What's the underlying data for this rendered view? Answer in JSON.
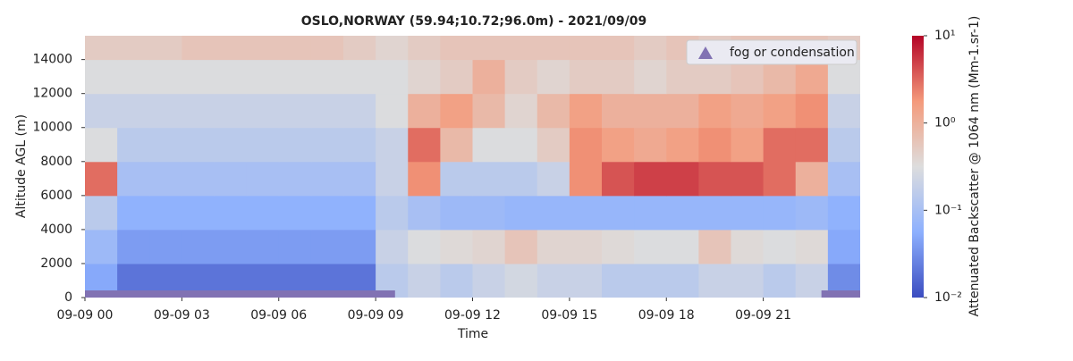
{
  "chart_data": {
    "type": "heatmap",
    "title": "OSLO,NORWAY (59.94;10.72;96.0m) - 2021/09/09",
    "x_label": "Time",
    "y_label": "Altitude AGL (m)",
    "colorbar_label": "Attenuated Backscatter @ 1064 nm (Mm-1.sr-1)",
    "colormap": "coolwarm",
    "color_scale": "log",
    "clim": [
      0.01,
      10
    ],
    "cticks": [
      {
        "value": 0.01,
        "label": "10⁻²"
      },
      {
        "value": 0.1,
        "label": "10⁻¹"
      },
      {
        "value": 1,
        "label": "10⁰"
      },
      {
        "value": 10,
        "label": "10¹"
      }
    ],
    "xlim": [
      0,
      24
    ],
    "xticks": [
      {
        "value": 0,
        "label": "09-09 00"
      },
      {
        "value": 3,
        "label": "09-09 03"
      },
      {
        "value": 6,
        "label": "09-09 06"
      },
      {
        "value": 9,
        "label": "09-09 09"
      },
      {
        "value": 12,
        "label": "09-09 12"
      },
      {
        "value": 15,
        "label": "09-09 15"
      },
      {
        "value": 18,
        "label": "09-09 18"
      },
      {
        "value": 21,
        "label": "09-09 21"
      }
    ],
    "ylim": [
      0,
      15400
    ],
    "yticks": [
      0,
      2000,
      4000,
      6000,
      8000,
      10000,
      12000,
      14000
    ],
    "x_edges": [
      0,
      1,
      2,
      3,
      4,
      5,
      6,
      7,
      8,
      9,
      10,
      11,
      12,
      13,
      14,
      15,
      16,
      17,
      18,
      19,
      20,
      21,
      22,
      23,
      24
    ],
    "y_edges": [
      0,
      2000,
      4000,
      6000,
      8000,
      10000,
      12000,
      14000,
      15400
    ],
    "z": [
      [
        0.05,
        0.02,
        0.02,
        0.02,
        0.02,
        0.02,
        0.02,
        0.02,
        0.02,
        0.15,
        0.2,
        0.15,
        0.2,
        0.25,
        0.2,
        0.2,
        0.15,
        0.15,
        0.15,
        0.2,
        0.2,
        0.15,
        0.2,
        0.03
      ],
      [
        0.08,
        0.04,
        0.04,
        0.04,
        0.04,
        0.04,
        0.04,
        0.04,
        0.04,
        0.2,
        0.3,
        0.35,
        0.4,
        0.6,
        0.4,
        0.4,
        0.35,
        0.3,
        0.3,
        0.6,
        0.35,
        0.3,
        0.35,
        0.05
      ],
      [
        0.15,
        0.06,
        0.06,
        0.06,
        0.06,
        0.06,
        0.06,
        0.06,
        0.06,
        0.15,
        0.1,
        0.08,
        0.08,
        0.07,
        0.07,
        0.07,
        0.07,
        0.07,
        0.07,
        0.07,
        0.07,
        0.07,
        0.08,
        0.06
      ],
      [
        3,
        0.1,
        0.1,
        0.1,
        0.1,
        0.1,
        0.1,
        0.1,
        0.1,
        0.2,
        2,
        0.15,
        0.15,
        0.15,
        0.2,
        2,
        4,
        5,
        5,
        4,
        4,
        3,
        1,
        0.1
      ],
      [
        0.3,
        0.15,
        0.15,
        0.15,
        0.15,
        0.15,
        0.15,
        0.15,
        0.15,
        0.2,
        3,
        0.8,
        0.3,
        0.3,
        0.5,
        2,
        1.5,
        1.2,
        1.5,
        2,
        1.5,
        3,
        3,
        0.15
      ],
      [
        0.2,
        0.2,
        0.2,
        0.2,
        0.2,
        0.2,
        0.2,
        0.2,
        0.2,
        0.3,
        1,
        1.5,
        0.8,
        0.4,
        0.8,
        1.5,
        1,
        1,
        1,
        1.5,
        1.2,
        1.5,
        2,
        0.2
      ],
      [
        0.3,
        0.3,
        0.3,
        0.3,
        0.3,
        0.3,
        0.3,
        0.3,
        0.3,
        0.3,
        0.4,
        0.5,
        1,
        0.5,
        0.4,
        0.5,
        0.5,
        0.4,
        0.5,
        0.5,
        0.6,
        0.8,
        1.2,
        0.3
      ],
      [
        0.5,
        0.5,
        0.5,
        0.6,
        0.6,
        0.6,
        0.6,
        0.6,
        0.5,
        0.4,
        0.5,
        0.6,
        0.6,
        0.6,
        0.6,
        0.6,
        0.6,
        0.5,
        0.6,
        0.5,
        0.6,
        0.6,
        0.6,
        0.5
      ]
    ],
    "fog": {
      "name": "fog or condensation",
      "color": "#8172b3",
      "intervals": [
        [
          0,
          9.6
        ],
        [
          22.8,
          24
        ]
      ]
    },
    "legend_position": "upper right"
  }
}
